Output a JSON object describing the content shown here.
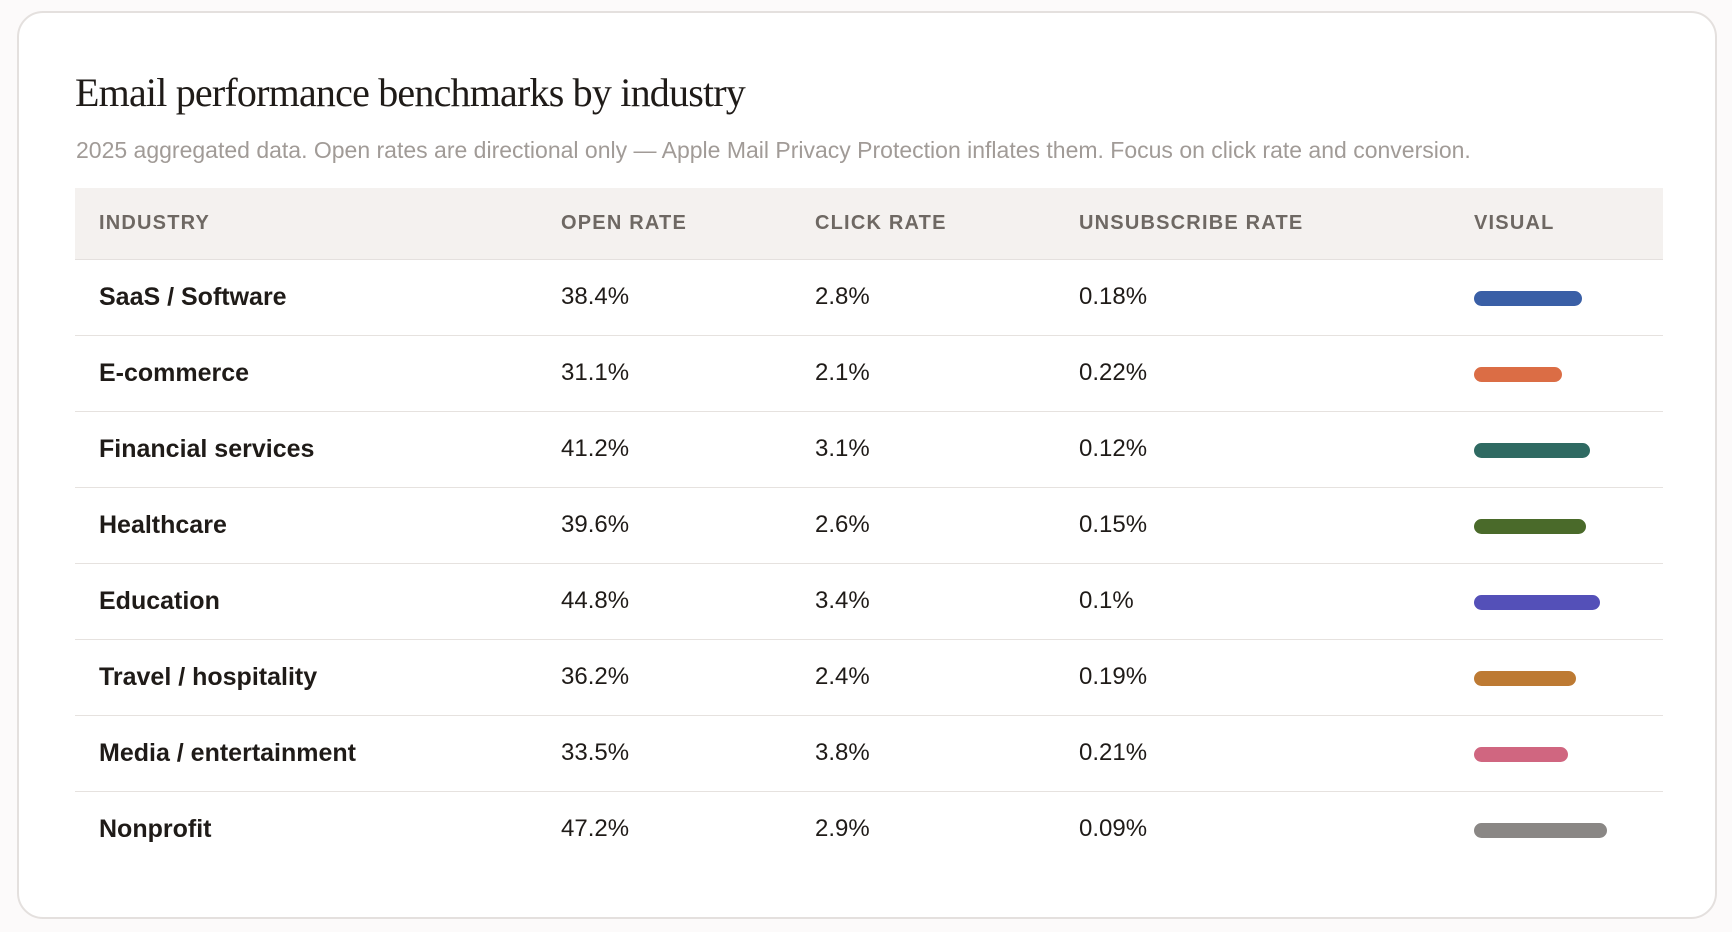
{
  "title": "Email performance benchmarks by industry",
  "subtitle": "2025 aggregated data. Open rates are directional only — Apple Mail Privacy Protection inflates them. Focus on click rate and conversion.",
  "table": {
    "headers": {
      "industry": "INDUSTRY",
      "open_rate": "OPEN RATE",
      "click_rate": "CLICK RATE",
      "unsubscribe_rate": "UNSUBSCRIBE RATE",
      "visual": "VISUAL"
    },
    "rows": [
      {
        "industry": "SaaS / Software",
        "open_rate": "38.4%",
        "click_rate": "2.8%",
        "unsubscribe_rate": "0.18%",
        "visual_value": 38.4,
        "color": "#3a5fa6"
      },
      {
        "industry": "E-commerce",
        "open_rate": "31.1%",
        "click_rate": "2.1%",
        "unsubscribe_rate": "0.22%",
        "visual_value": 31.1,
        "color": "#db6d45"
      },
      {
        "industry": "Financial services",
        "open_rate": "41.2%",
        "click_rate": "3.1%",
        "unsubscribe_rate": "0.12%",
        "visual_value": 41.2,
        "color": "#2f6a62"
      },
      {
        "industry": "Healthcare",
        "open_rate": "39.6%",
        "click_rate": "2.6%",
        "unsubscribe_rate": "0.15%",
        "visual_value": 39.6,
        "color": "#4a6a2a"
      },
      {
        "industry": "Education",
        "open_rate": "44.8%",
        "click_rate": "3.4%",
        "unsubscribe_rate": "0.1%",
        "visual_value": 44.8,
        "color": "#5450b8"
      },
      {
        "industry": "Travel / hospitality",
        "open_rate": "36.2%",
        "click_rate": "2.4%",
        "unsubscribe_rate": "0.19%",
        "visual_value": 36.2,
        "color": "#bd7a33"
      },
      {
        "industry": "Media / entertainment",
        "open_rate": "33.5%",
        "click_rate": "3.8%",
        "unsubscribe_rate": "0.21%",
        "visual_value": 33.5,
        "color": "#d06680"
      },
      {
        "industry": "Nonprofit",
        "open_rate": "47.2%",
        "click_rate": "2.9%",
        "unsubscribe_rate": "0.09%",
        "visual_value": 47.2,
        "color": "#8a8785"
      }
    ]
  }
}
